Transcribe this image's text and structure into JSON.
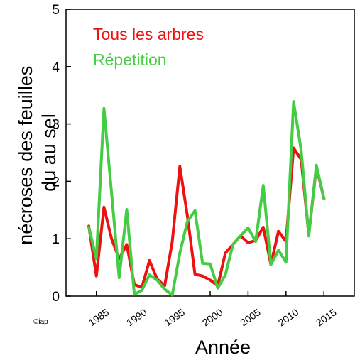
{
  "chart_data": {
    "type": "line",
    "xlabel": "Année",
    "ylabel": [
      "nécroses des feuilles",
      "du au sel"
    ],
    "xlim": [
      1981,
      2019
    ],
    "ylim": [
      0,
      5
    ],
    "x_ticks": [
      1985,
      1990,
      1995,
      2000,
      2005,
      2010,
      2015
    ],
    "y_ticks": [
      0,
      1,
      2,
      3,
      4,
      5
    ],
    "grid": false,
    "legend_position": "top-left",
    "credit": "©iap",
    "series": [
      {
        "name": "Tous les arbres",
        "color": "#ee1111",
        "x": [
          1984,
          1985,
          1986,
          1987,
          1988,
          1989,
          1990,
          1991,
          1992,
          1993,
          1994,
          1995,
          1996,
          1997,
          1998,
          1999,
          2000,
          2001,
          2002,
          2003,
          2004,
          2005,
          2006,
          2007,
          2008,
          2009,
          2010,
          2011,
          2012,
          2013,
          2014,
          2015
        ],
        "y": [
          1.22,
          0.35,
          1.55,
          1.0,
          0.65,
          0.9,
          0.2,
          0.15,
          0.62,
          0.3,
          0.18,
          0.95,
          2.26,
          1.4,
          0.38,
          0.35,
          0.28,
          0.18,
          0.75,
          0.9,
          1.05,
          0.93,
          0.97,
          1.2,
          0.55,
          1.13,
          0.95,
          2.58,
          2.38,
          1.07,
          2.25,
          1.7
        ]
      },
      {
        "name": "Répetition",
        "color": "#44cc44",
        "x": [
          1984,
          1985,
          1986,
          1987,
          1988,
          1989,
          1990,
          1991,
          1992,
          1993,
          1994,
          1995,
          1996,
          1997,
          1998,
          1999,
          2000,
          2001,
          2002,
          2003,
          2004,
          2005,
          2006,
          2007,
          2008,
          2009,
          2010,
          2011,
          2012,
          2013,
          2014,
          2015
        ],
        "y": [
          1.2,
          0.65,
          3.27,
          1.8,
          0.32,
          1.51,
          0.03,
          0.1,
          0.37,
          0.28,
          0.12,
          0.02,
          0.75,
          1.3,
          1.49,
          0.57,
          0.56,
          0.14,
          0.37,
          0.9,
          1.05,
          1.19,
          0.95,
          1.93,
          0.55,
          0.8,
          0.59,
          3.39,
          2.54,
          1.05,
          2.28,
          1.7
        ]
      }
    ]
  }
}
